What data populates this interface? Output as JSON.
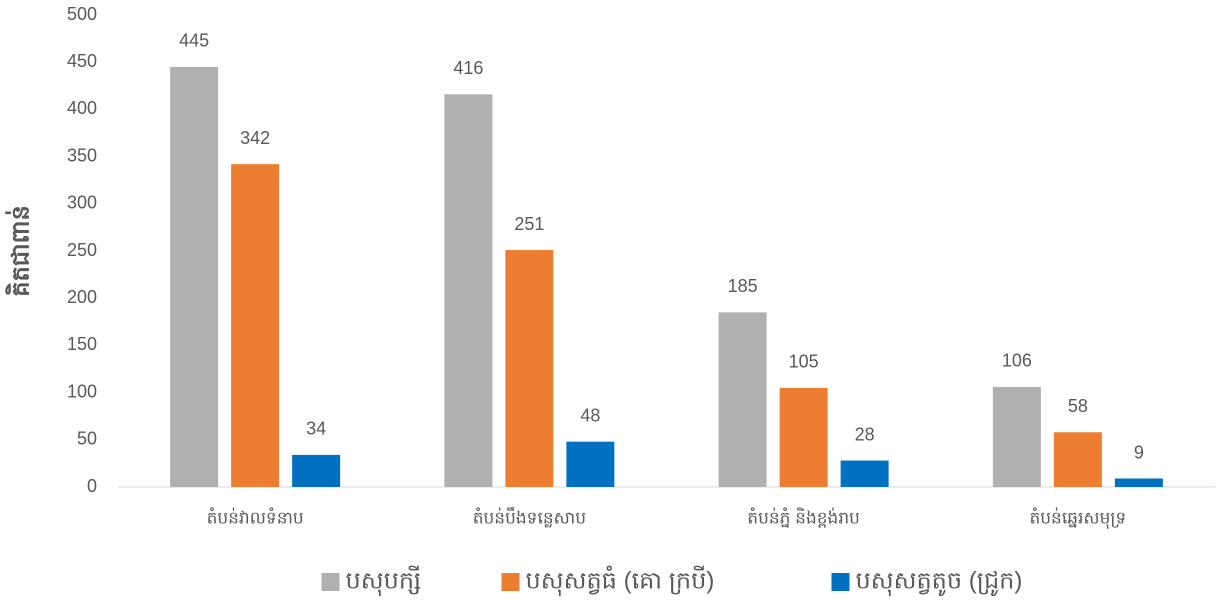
{
  "chart_data": {
    "type": "bar",
    "y_label": "គិតជាពាន់",
    "categories": [
      "តំបន់វាលទំនាប",
      "តំបន់បឹងទន្លេសាប",
      "តំបន់ភ្នំ និងខ្ពង់រាប",
      "តំបន់ឆ្នេរសមុទ្រ"
    ],
    "series": [
      {
        "name": "បសុបក្សី",
        "color": "#b0b0b3",
        "values": [
          445,
          416,
          185,
          106
        ]
      },
      {
        "name": "បសុសត្វធំ (គោ ក្របី)",
        "color": "#ed7d31",
        "values": [
          342,
          251,
          105,
          58
        ]
      },
      {
        "name": "បសុសត្វតូច (ជ្រូក)",
        "color": "#0070c0",
        "values": [
          34,
          48,
          28,
          9
        ]
      }
    ],
    "ylim": [
      0,
      500
    ],
    "yticks": [
      0,
      50,
      100,
      150,
      200,
      250,
      300,
      350,
      400,
      450,
      500
    ],
    "grid": false,
    "legend": "bottom"
  }
}
